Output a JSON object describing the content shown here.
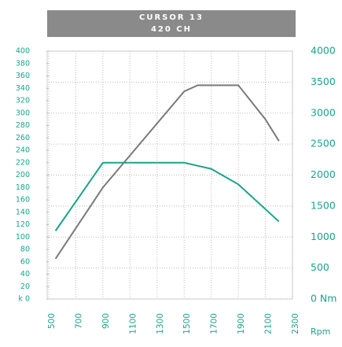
{
  "chart_data": {
    "type": "line",
    "title": "CURSOR 13",
    "subtitle": "420 CH",
    "xlabel": "Rpm",
    "xlim": [
      500,
      2300
    ],
    "xticks": [
      500,
      700,
      900,
      1100,
      1300,
      1500,
      1700,
      1900,
      2100,
      2300
    ],
    "ylim": [
      0,
      400
    ],
    "yticks": [
      {
        "value": 0,
        "label": "k 0"
      },
      20,
      40,
      60,
      80,
      100,
      120,
      140,
      160,
      180,
      200,
      220,
      240,
      260,
      280,
      300,
      320,
      340,
      360,
      380,
      400
    ],
    "y2lim": [
      0,
      4000
    ],
    "y2ticks": [
      {
        "value": 0,
        "label": "0 Nm"
      },
      500,
      1000,
      1500,
      2000,
      2500,
      3000,
      3500,
      4000
    ],
    "grid": true,
    "series": [
      {
        "color": "#7a7a7a",
        "x": [
          550,
          900,
          1500,
          1600,
          1900,
          2100,
          2200
        ],
        "values": [
          65,
          180,
          335,
          345,
          345,
          290,
          255
        ]
      },
      {
        "color": "#1aa38a",
        "axis": "y2",
        "x": [
          550,
          900,
          1500,
          1700,
          1900,
          2200
        ],
        "values": [
          1100,
          2200,
          2200,
          2100,
          1850,
          1250
        ]
      }
    ]
  }
}
